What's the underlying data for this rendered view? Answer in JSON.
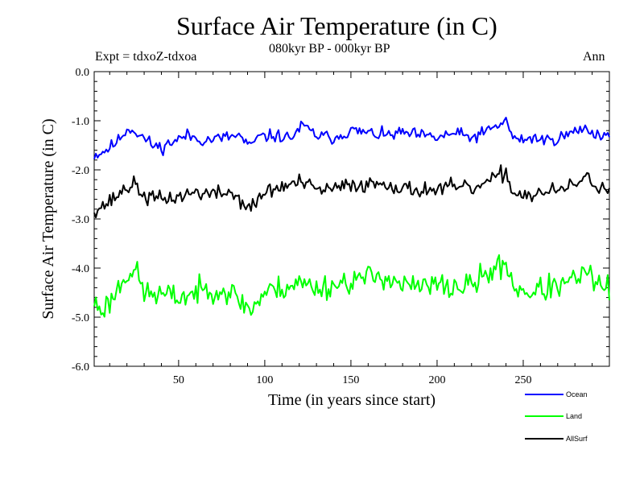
{
  "chart_data": {
    "type": "line",
    "title": "Surface Air Temperature (in C)",
    "subtitle": "080kyr BP - 000kyr BP",
    "left_note": "Expt = tdxoZ-tdxoa",
    "right_note": "Ann",
    "xlabel": "Time (in years since start)",
    "ylabel": "Surface Air Temperature (in C)",
    "xlim": [
      1,
      300
    ],
    "ylim": [
      -6.0,
      0.0
    ],
    "x_ticks": [
      50,
      100,
      150,
      200,
      250
    ],
    "y_ticks": [
      "0.0",
      "-1.0",
      "-2.0",
      "-3.0",
      "-4.0",
      "-5.0",
      "-6.0"
    ],
    "grid": false,
    "legend_position": "bottom-right, below plot",
    "series": [
      {
        "name": "Ocean",
        "color": "#0000ff",
        "base": -1.35,
        "keyframes": [
          [
            1,
            -1.7
          ],
          [
            5,
            -1.65
          ],
          [
            10,
            -1.55
          ],
          [
            15,
            -1.4
          ],
          [
            18,
            -1.25
          ],
          [
            22,
            -1.15
          ],
          [
            28,
            -1.3
          ],
          [
            35,
            -1.5
          ],
          [
            40,
            -1.55
          ],
          [
            45,
            -1.45
          ],
          [
            55,
            -1.3
          ],
          [
            65,
            -1.4
          ],
          [
            75,
            -1.35
          ],
          [
            85,
            -1.3
          ],
          [
            92,
            -1.55
          ],
          [
            95,
            -1.35
          ],
          [
            105,
            -1.3
          ],
          [
            115,
            -1.35
          ],
          [
            122,
            -1.1
          ],
          [
            130,
            -1.3
          ],
          [
            140,
            -1.35
          ],
          [
            150,
            -1.2
          ],
          [
            160,
            -1.25
          ],
          [
            170,
            -1.3
          ],
          [
            180,
            -1.25
          ],
          [
            190,
            -1.3
          ],
          [
            200,
            -1.35
          ],
          [
            210,
            -1.25
          ],
          [
            220,
            -1.35
          ],
          [
            230,
            -1.2
          ],
          [
            240,
            -1.0
          ],
          [
            245,
            -1.4
          ],
          [
            255,
            -1.35
          ],
          [
            265,
            -1.4
          ],
          [
            275,
            -1.3
          ],
          [
            285,
            -1.15
          ],
          [
            295,
            -1.3
          ],
          [
            300,
            -1.3
          ]
        ],
        "noise_amp": 0.08,
        "seed": 11
      },
      {
        "name": "Land",
        "color": "#00ff00",
        "base": -4.4,
        "keyframes": [
          [
            1,
            -4.7
          ],
          [
            5,
            -4.85
          ],
          [
            10,
            -4.7
          ],
          [
            15,
            -4.4
          ],
          [
            20,
            -4.1
          ],
          [
            25,
            -4.05
          ],
          [
            30,
            -4.5
          ],
          [
            40,
            -4.55
          ],
          [
            50,
            -4.6
          ],
          [
            60,
            -4.5
          ],
          [
            70,
            -4.4
          ],
          [
            80,
            -4.5
          ],
          [
            92,
            -4.85
          ],
          [
            100,
            -4.5
          ],
          [
            110,
            -4.4
          ],
          [
            120,
            -4.3
          ],
          [
            130,
            -4.4
          ],
          [
            140,
            -4.35
          ],
          [
            150,
            -4.25
          ],
          [
            160,
            -4.2
          ],
          [
            170,
            -4.15
          ],
          [
            180,
            -4.35
          ],
          [
            190,
            -4.4
          ],
          [
            200,
            -4.35
          ],
          [
            210,
            -4.4
          ],
          [
            220,
            -4.35
          ],
          [
            230,
            -4.1
          ],
          [
            240,
            -3.9
          ],
          [
            245,
            -4.4
          ],
          [
            255,
            -4.5
          ],
          [
            265,
            -4.4
          ],
          [
            275,
            -4.35
          ],
          [
            285,
            -4.1
          ],
          [
            295,
            -4.35
          ],
          [
            300,
            -4.4
          ]
        ],
        "noise_amp": 0.16,
        "seed": 23
      },
      {
        "name": "AllSurf",
        "color": "#000000",
        "base": -2.45,
        "keyframes": [
          [
            1,
            -2.8
          ],
          [
            5,
            -2.75
          ],
          [
            10,
            -2.65
          ],
          [
            15,
            -2.5
          ],
          [
            20,
            -2.35
          ],
          [
            25,
            -2.3
          ],
          [
            30,
            -2.55
          ],
          [
            40,
            -2.6
          ],
          [
            50,
            -2.55
          ],
          [
            60,
            -2.45
          ],
          [
            70,
            -2.5
          ],
          [
            80,
            -2.45
          ],
          [
            92,
            -2.8
          ],
          [
            100,
            -2.45
          ],
          [
            110,
            -2.35
          ],
          [
            120,
            -2.25
          ],
          [
            130,
            -2.4
          ],
          [
            140,
            -2.4
          ],
          [
            150,
            -2.3
          ],
          [
            160,
            -2.3
          ],
          [
            170,
            -2.25
          ],
          [
            180,
            -2.4
          ],
          [
            190,
            -2.4
          ],
          [
            200,
            -2.4
          ],
          [
            210,
            -2.35
          ],
          [
            220,
            -2.4
          ],
          [
            230,
            -2.25
          ],
          [
            240,
            -2.05
          ],
          [
            245,
            -2.5
          ],
          [
            255,
            -2.5
          ],
          [
            265,
            -2.45
          ],
          [
            275,
            -2.4
          ],
          [
            285,
            -2.15
          ],
          [
            295,
            -2.35
          ],
          [
            300,
            -2.4
          ]
        ],
        "noise_amp": 0.1,
        "seed": 37
      }
    ]
  }
}
